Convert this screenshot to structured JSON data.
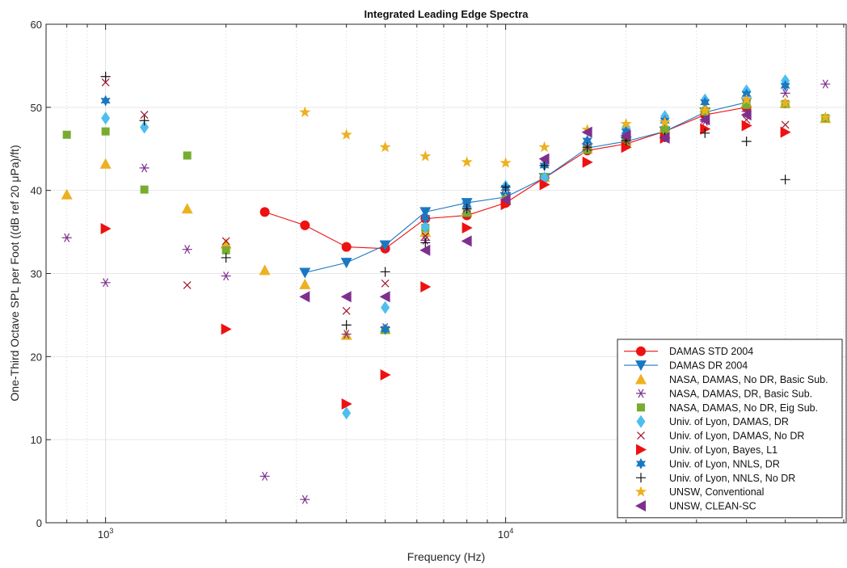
{
  "chart_data": {
    "type": "scatter",
    "title": "Integrated Leading Edge Spectra",
    "xlabel": "Frequency (Hz)",
    "ylabel": "One-Third Octave SPL per Foot ((dB ref 20 μPa)/ft)",
    "x_scale": "log",
    "xlim": [
      710,
      71000
    ],
    "ylim": [
      0,
      60
    ],
    "y_ticks": [
      0,
      10,
      20,
      30,
      40,
      50,
      60
    ],
    "x_tick_labels": [
      {
        "value": 1000,
        "base": "10",
        "exp": "3"
      },
      {
        "value": 10000,
        "base": "10",
        "exp": "4"
      }
    ],
    "grid": true,
    "legend_position": "bottom-right",
    "series": [
      {
        "name": "DAMAS STD 2004",
        "marker": "circle",
        "line": true,
        "color": "#ee1111",
        "points": [
          [
            2500,
            37.4
          ],
          [
            3150,
            35.8
          ],
          [
            4000,
            33.2
          ],
          [
            5000,
            33.0
          ],
          [
            6300,
            36.6
          ],
          [
            8000,
            37.0
          ],
          [
            10000,
            38.5
          ],
          [
            12500,
            41.5
          ],
          [
            16000,
            44.8
          ],
          [
            20000,
            45.6
          ],
          [
            25000,
            47.1
          ],
          [
            31500,
            49.1
          ],
          [
            40000,
            50.0
          ]
        ]
      },
      {
        "name": "DAMAS DR 2004",
        "marker": "triangle-down",
        "line": true,
        "color": "#1a78c2",
        "points": [
          [
            3150,
            30.1
          ],
          [
            4000,
            31.3
          ],
          [
            5000,
            33.4
          ],
          [
            6300,
            37.4
          ],
          [
            8000,
            38.5
          ],
          [
            10000,
            39.2
          ],
          [
            12500,
            41.5
          ],
          [
            16000,
            45.1
          ],
          [
            20000,
            45.9
          ],
          [
            25000,
            47.1
          ],
          [
            31500,
            49.4
          ],
          [
            40000,
            50.6
          ]
        ]
      },
      {
        "name": "NASA, DAMAS, No DR, Basic Sub.",
        "marker": "triangle-up",
        "line": false,
        "color": "#edb120",
        "points": [
          [
            800,
            39.5
          ],
          [
            1000,
            43.2
          ],
          [
            1600,
            37.8
          ],
          [
            2000,
            33.6
          ],
          [
            2500,
            30.4
          ],
          [
            3150,
            28.7
          ],
          [
            4000,
            22.6
          ],
          [
            5000,
            23.3
          ],
          [
            6300,
            35.0
          ],
          [
            8000,
            37.5
          ],
          [
            10000,
            39.0
          ],
          [
            12500,
            41.6
          ],
          [
            16000,
            45.0
          ],
          [
            20000,
            46.0
          ],
          [
            25000,
            47.5
          ],
          [
            31500,
            50.0
          ],
          [
            40000,
            50.6
          ],
          [
            50000,
            50.5
          ],
          [
            63000,
            48.7
          ]
        ]
      },
      {
        "name": "NASA, DAMAS, DR, Basic Sub.",
        "marker": "asterisk",
        "line": false,
        "color": "#7e2f8e",
        "points": [
          [
            800,
            34.3
          ],
          [
            1000,
            28.9
          ],
          [
            1250,
            42.7
          ],
          [
            1600,
            32.9
          ],
          [
            2000,
            29.7
          ],
          [
            2500,
            5.6
          ],
          [
            3150,
            2.8
          ],
          [
            4000,
            22.7
          ],
          [
            5000,
            23.5
          ],
          [
            6300,
            34.0
          ],
          [
            8000,
            37.2
          ],
          [
            10000,
            38.8
          ],
          [
            12500,
            41.6
          ],
          [
            16000,
            44.9
          ],
          [
            20000,
            46.0
          ],
          [
            25000,
            46.3
          ],
          [
            31500,
            48.3
          ],
          [
            40000,
            49.5
          ],
          [
            50000,
            51.7
          ],
          [
            63000,
            52.8
          ]
        ]
      },
      {
        "name": "NASA, DAMAS, No DR, Eig Sub.",
        "marker": "square",
        "line": false,
        "color": "#77ac30",
        "points": [
          [
            800,
            46.7
          ],
          [
            1000,
            47.1
          ],
          [
            1250,
            40.1
          ],
          [
            1600,
            44.2
          ],
          [
            2000,
            32.8
          ],
          [
            5000,
            23.2
          ],
          [
            6300,
            35.5
          ],
          [
            8000,
            37.3
          ],
          [
            10000,
            38.9
          ],
          [
            12500,
            41.6
          ],
          [
            16000,
            44.9
          ],
          [
            20000,
            45.7
          ],
          [
            25000,
            47.3
          ],
          [
            31500,
            49.5
          ],
          [
            40000,
            50.3
          ],
          [
            50000,
            50.4
          ],
          [
            63000,
            48.7
          ]
        ]
      },
      {
        "name": "Univ. of Lyon, DAMAS, DR",
        "marker": "diamond",
        "line": false,
        "color": "#4dbeee",
        "points": [
          [
            1000,
            48.7
          ],
          [
            1250,
            47.6
          ],
          [
            4000,
            13.2
          ],
          [
            5000,
            25.9
          ],
          [
            6300,
            35.6
          ],
          [
            8000,
            38.0
          ],
          [
            10000,
            40.5
          ],
          [
            12500,
            41.5
          ],
          [
            16000,
            45.6
          ],
          [
            20000,
            47.6
          ],
          [
            25000,
            48.9
          ],
          [
            31500,
            50.9
          ],
          [
            40000,
            52.0
          ],
          [
            50000,
            53.2
          ]
        ]
      },
      {
        "name": "Univ. of Lyon, DAMAS, No DR",
        "marker": "x",
        "line": false,
        "color": "#a2142f",
        "points": [
          [
            1000,
            53.0
          ],
          [
            1250,
            49.1
          ],
          [
            1600,
            28.6
          ],
          [
            2000,
            33.9
          ],
          [
            4000,
            25.5
          ],
          [
            5000,
            28.8
          ],
          [
            6300,
            34.5
          ],
          [
            8000,
            37.8
          ],
          [
            10000,
            40.2
          ],
          [
            12500,
            43.3
          ],
          [
            16000,
            45.2
          ],
          [
            20000,
            46.0
          ],
          [
            25000,
            46.5
          ],
          [
            31500,
            48.5
          ],
          [
            40000,
            48.5
          ],
          [
            50000,
            47.9
          ]
        ]
      },
      {
        "name": "Univ. of Lyon, Bayes, L1",
        "marker": "triangle-right",
        "line": false,
        "color": "#ee1111",
        "points": [
          [
            1000,
            35.4
          ],
          [
            2000,
            23.3
          ],
          [
            4000,
            14.3
          ],
          [
            5000,
            17.8
          ],
          [
            6300,
            28.4
          ],
          [
            8000,
            35.5
          ],
          [
            10000,
            38.3
          ],
          [
            12500,
            40.7
          ],
          [
            16000,
            43.4
          ],
          [
            20000,
            45.2
          ],
          [
            25000,
            46.3
          ],
          [
            31500,
            47.4
          ],
          [
            40000,
            47.8
          ],
          [
            50000,
            47.0
          ]
        ]
      },
      {
        "name": "Univ. of Lyon, NNLS, DR",
        "marker": "hexagram",
        "line": false,
        "color": "#1a78c2",
        "points": [
          [
            1000,
            50.8
          ],
          [
            5000,
            23.3
          ],
          [
            6300,
            36.7
          ],
          [
            8000,
            38.3
          ],
          [
            10000,
            40.3
          ],
          [
            12500,
            43.0
          ],
          [
            16000,
            46.0
          ],
          [
            20000,
            47.1
          ],
          [
            25000,
            48.4
          ],
          [
            31500,
            50.6
          ],
          [
            40000,
            51.6
          ],
          [
            50000,
            52.6
          ]
        ]
      },
      {
        "name": "Univ. of Lyon, NNLS, No DR",
        "marker": "plus",
        "line": false,
        "color": "#111111",
        "points": [
          [
            1000,
            53.7
          ],
          [
            1250,
            48.4
          ],
          [
            2000,
            31.9
          ],
          [
            4000,
            23.8
          ],
          [
            5000,
            30.2
          ],
          [
            6300,
            33.7
          ],
          [
            8000,
            37.8
          ],
          [
            10000,
            40.4
          ],
          [
            12500,
            43.0
          ],
          [
            16000,
            45.2
          ],
          [
            20000,
            46.0
          ],
          [
            25000,
            46.4
          ],
          [
            31500,
            46.9
          ],
          [
            40000,
            45.9
          ],
          [
            50000,
            41.3
          ]
        ]
      },
      {
        "name": "UNSW, Conventional",
        "marker": "pentagram",
        "line": false,
        "color": "#edb120",
        "points": [
          [
            3150,
            49.4
          ],
          [
            4000,
            46.7
          ],
          [
            5000,
            45.2
          ],
          [
            6300,
            44.1
          ],
          [
            8000,
            43.4
          ],
          [
            10000,
            43.3
          ],
          [
            12500,
            45.2
          ],
          [
            16000,
            47.3
          ],
          [
            20000,
            48.0
          ],
          [
            25000,
            48.2
          ],
          [
            31500,
            49.6
          ],
          [
            40000,
            50.9
          ],
          [
            50000,
            50.5
          ],
          [
            63000,
            48.8
          ]
        ]
      },
      {
        "name": "UNSW, CLEAN-SC",
        "marker": "triangle-left",
        "line": false,
        "color": "#7e2f8e",
        "points": [
          [
            3150,
            27.2
          ],
          [
            4000,
            27.2
          ],
          [
            5000,
            27.2
          ],
          [
            6300,
            32.8
          ],
          [
            8000,
            33.9
          ],
          [
            10000,
            38.9
          ],
          [
            12500,
            43.8
          ],
          [
            16000,
            47.0
          ],
          [
            20000,
            46.6
          ],
          [
            25000,
            46.3
          ],
          [
            31500,
            48.5
          ],
          [
            40000,
            49.1
          ]
        ]
      }
    ]
  }
}
